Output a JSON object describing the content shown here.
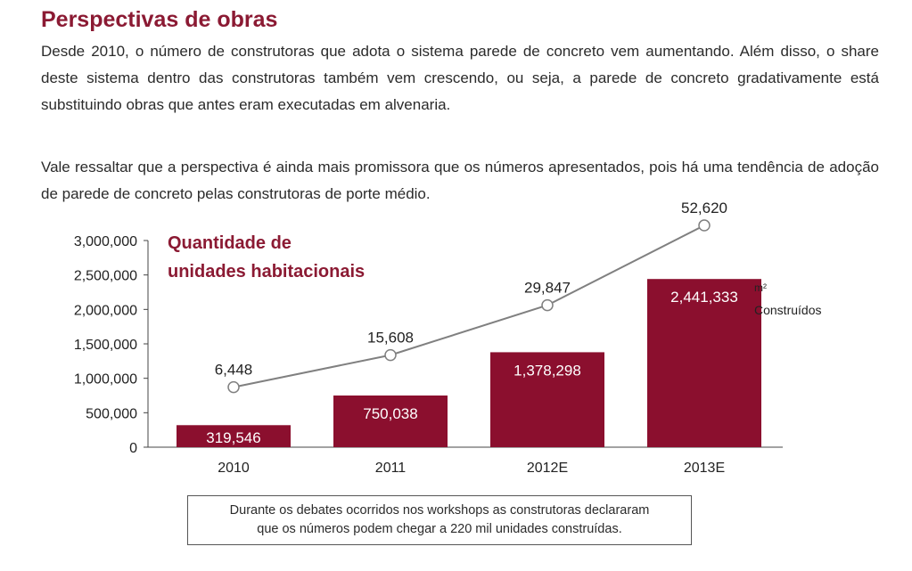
{
  "heading": "Perspectivas de obras",
  "paragraphs": [
    "Desde 2010, o número de construtoras que adota o sistema parede de concreto vem aumentando. Além disso, o share deste sistema dentro das construtoras também vem crescendo, ou seja, a parede de concreto gradativamente está substituindo obras que antes eram executadas em alvenaria.",
    "Vale ressaltar que a perspectiva é ainda mais promissora que os números apresentados, pois há uma tendência de adoção de parede de concreto pelas construtoras de porte médio."
  ],
  "chart_data": {
    "type": "bar",
    "title_lines": [
      "Quantidade de",
      "unidades habitacionais"
    ],
    "categories": [
      "2010",
      "2011",
      "2012E",
      "2013E"
    ],
    "series": [
      {
        "type": "bar",
        "values": [
          319546,
          750038,
          1378298,
          2441333
        ],
        "labels": [
          "319,546",
          "750,038",
          "1,378,298",
          "2,441,333"
        ]
      },
      {
        "name": "m² Construídos",
        "type": "line",
        "values": [
          6448,
          15608,
          29847,
          52620
        ],
        "labels": [
          "6,448",
          "15,608",
          "29,847",
          "52,620"
        ]
      }
    ],
    "yticks": [
      "0",
      "500,000",
      "1,000,000",
      "1,500,000",
      "2,000,000",
      "2,500,000",
      "3,000,000"
    ],
    "ylim": [
      0,
      3000000
    ],
    "line_legend": {
      "unit": "m²",
      "label": "Construídos"
    },
    "bar_color": "#8b0f2e",
    "line_color": "#808080",
    "grid": false
  },
  "note_lines": [
    "Durante os debates ocorridos nos workshops as construtoras declararam",
    "que os números podem chegar a 220 mil unidades construídas."
  ]
}
